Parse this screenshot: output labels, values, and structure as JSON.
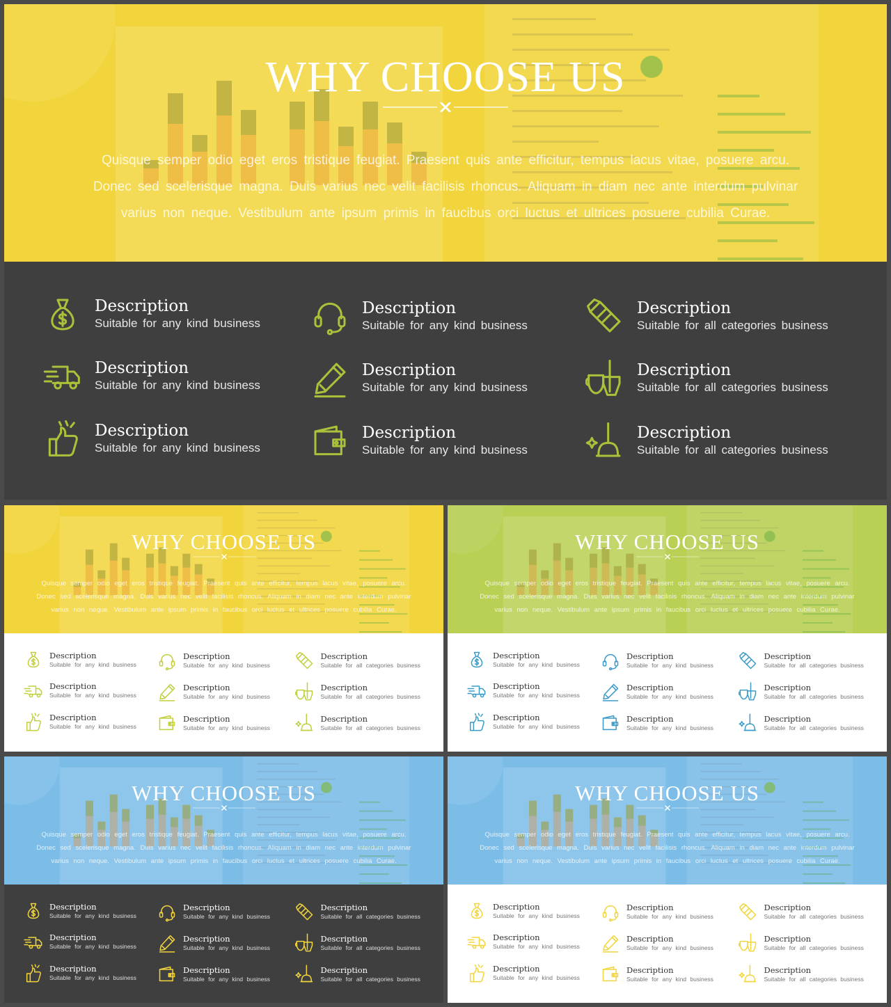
{
  "title": "WHY CHOOSE US",
  "paragraph": [
    "Quisque semper odio eget eros tristique feugiat. Praesent quis ante efficitur, tempus lacus vitae, posuere arcu.",
    "Donec sed scelerisque magna. Duis varius nec velit facilisis rhoncus. Aliquam in diam nec ante interdum pulvinar",
    "varius non neque. Vestibulum ante ipsum primis in faucibus orci luctus et ultrices posuere cubilia Curae."
  ],
  "items": [
    {
      "icon": "money-bag-icon",
      "heading": "Description",
      "sub": "Suitable for any kind business"
    },
    {
      "icon": "headset-icon",
      "heading": "Description",
      "sub": "Suitable for any kind business"
    },
    {
      "icon": "dustpan-icon",
      "heading": "Description",
      "sub": "Suitable for all categories business"
    },
    {
      "icon": "delivery-truck-icon",
      "heading": "Description",
      "sub": "Suitable for any kind business"
    },
    {
      "icon": "pen-icon",
      "heading": "Description",
      "sub": "Suitable for any kind business"
    },
    {
      "icon": "mop-bucket-icon",
      "heading": "Description",
      "sub": "Suitable for all categories business"
    },
    {
      "icon": "thumbs-up-icon",
      "heading": "Description",
      "sub": "Suitable for any kind business"
    },
    {
      "icon": "wallet-icon",
      "heading": "Description",
      "sub": "Suitable for any kind business"
    },
    {
      "icon": "plunger-icon",
      "heading": "Description",
      "sub": "Suitable for all categories business"
    }
  ],
  "variants": [
    {
      "name": "yellow-dark",
      "hero_color": "#f2d53c",
      "panel_color": "#3f3f3f",
      "icon_color": "#a9c23a",
      "heading_color": "#ffffff",
      "sub_color": "#e6e6e6"
    },
    {
      "name": "yellow-white",
      "hero_color": "#f2d53c",
      "panel_color": "#ffffff",
      "icon_color": "#c2cf3d",
      "heading_color": "#333333",
      "sub_color": "#777777"
    },
    {
      "name": "green-white",
      "hero_color": "#b8d054",
      "panel_color": "#ffffff",
      "icon_color": "#3b9bc8",
      "heading_color": "#333333",
      "sub_color": "#777777"
    },
    {
      "name": "blue-dark",
      "hero_color": "#7cbde8",
      "panel_color": "#3f3f3f",
      "icon_color": "#f2d53c",
      "heading_color": "#ffffff",
      "sub_color": "#dddddd"
    },
    {
      "name": "blue-white",
      "hero_color": "#7cbde8",
      "panel_color": "#ffffff",
      "icon_color": "#f2d53c",
      "heading_color": "#333333",
      "sub_color": "#777777"
    }
  ]
}
